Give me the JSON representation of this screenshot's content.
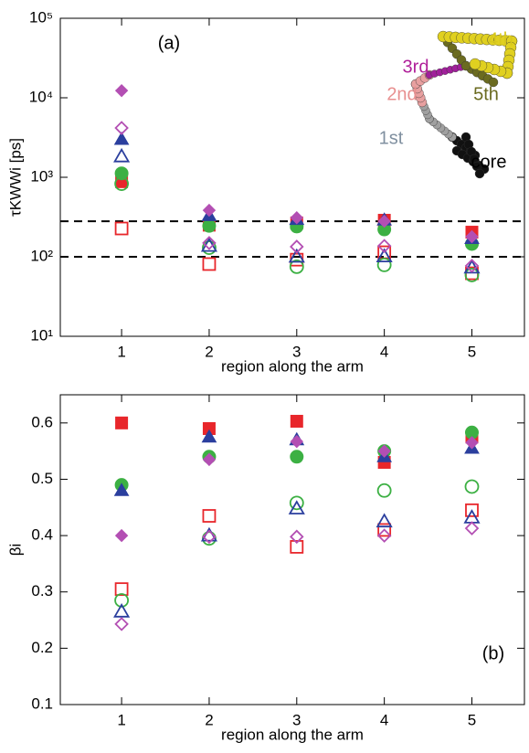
{
  "chart_data": [
    {
      "type": "scatter",
      "ylabel": "τKWWi [ps]",
      "xlabel": "region along the arm",
      "xlim": [
        0.3,
        5.6
      ],
      "xticks": [
        1,
        2,
        3,
        4,
        5
      ],
      "ylim": [
        10,
        100000
      ],
      "log_y": true,
      "yticks": [
        {
          "value": 10,
          "label": "10¹"
        },
        {
          "value": 100,
          "label": "10²"
        },
        {
          "value": 1000,
          "label": "10³"
        },
        {
          "value": 10000,
          "label": "10⁴"
        },
        {
          "value": 100000,
          "label": "10⁵"
        }
      ],
      "hlines": [
        280,
        100
      ],
      "annotations": [
        {
          "text": "(a)",
          "color": "#000000"
        },
        {
          "text": "4th",
          "color": "#d8c81c"
        },
        {
          "text": "3rd",
          "color": "#b0209a"
        },
        {
          "text": "2nd",
          "color": "#e89090"
        },
        {
          "text": "5th",
          "color": "#6b6b20"
        },
        {
          "text": "1st",
          "color": "#8090a0"
        },
        {
          "text": "core",
          "color": "#000000"
        }
      ],
      "x": [
        1,
        2,
        3,
        4,
        5
      ],
      "series": [
        {
          "marker": "square",
          "filled": true,
          "color": "#e8262b",
          "values": [
            880,
            250,
            267,
            288,
            204
          ]
        },
        {
          "marker": "square",
          "filled": false,
          "color": "#e8262b",
          "values": [
            227,
            81,
            92,
            114,
            62
          ]
        },
        {
          "marker": "circle",
          "filled": true,
          "color": "#3cb043",
          "values": [
            1120,
            245,
            240,
            221,
            145
          ]
        },
        {
          "marker": "circle",
          "filled": false,
          "color": "#3cb043",
          "values": [
            830,
            130,
            75,
            79,
            59
          ]
        },
        {
          "marker": "triangle",
          "filled": true,
          "color": "#2b3f9e",
          "values": [
            3000,
            330,
            295,
            290,
            170
          ]
        },
        {
          "marker": "triangle",
          "filled": false,
          "color": "#2b3f9e",
          "values": [
            1830,
            137,
            100,
            101,
            73
          ]
        },
        {
          "marker": "diamond",
          "filled": true,
          "color": "#b34fb3",
          "values": [
            12300,
            385,
            310,
            280,
            179
          ]
        },
        {
          "marker": "diamond",
          "filled": false,
          "color": "#b34fb3",
          "values": [
            4170,
            149,
            134,
            137,
            77
          ]
        }
      ]
    },
    {
      "type": "scatter",
      "ylabel": "βi",
      "xlabel": "region along the arm",
      "xlim": [
        0.3,
        5.6
      ],
      "xticks": [
        1,
        2,
        3,
        4,
        5
      ],
      "ylim": [
        0.1,
        0.65
      ],
      "log_y": false,
      "yticks": [
        0.1,
        0.2,
        0.3,
        0.4,
        0.5,
        0.6
      ],
      "annotations": [
        {
          "text": "(b)",
          "color": "#000000"
        }
      ],
      "x": [
        1,
        2,
        3,
        4,
        5
      ],
      "series": [
        {
          "marker": "square",
          "filled": true,
          "color": "#e8262b",
          "values": [
            0.6,
            0.59,
            0.603,
            0.53,
            0.575
          ]
        },
        {
          "marker": "square",
          "filled": false,
          "color": "#e8262b",
          "values": [
            0.305,
            0.435,
            0.38,
            0.41,
            0.445
          ]
        },
        {
          "marker": "circle",
          "filled": true,
          "color": "#3cb043",
          "values": [
            0.49,
            0.54,
            0.54,
            0.55,
            0.583
          ]
        },
        {
          "marker": "circle",
          "filled": false,
          "color": "#3cb043",
          "values": [
            0.285,
            0.395,
            0.458,
            0.48,
            0.487
          ]
        },
        {
          "marker": "triangle",
          "filled": true,
          "color": "#2b3f9e",
          "values": [
            0.48,
            0.575,
            0.57,
            0.54,
            0.555
          ]
        },
        {
          "marker": "triangle",
          "filled": false,
          "color": "#2b3f9e",
          "values": [
            0.265,
            0.4,
            0.448,
            0.425,
            0.432
          ]
        },
        {
          "marker": "diamond",
          "filled": true,
          "color": "#b34fb3",
          "values": [
            0.4,
            0.535,
            0.567,
            0.55,
            0.565
          ]
        },
        {
          "marker": "diamond",
          "filled": false,
          "color": "#b34fb3",
          "values": [
            0.243,
            0.398,
            0.398,
            0.4,
            0.413
          ]
        }
      ]
    }
  ]
}
